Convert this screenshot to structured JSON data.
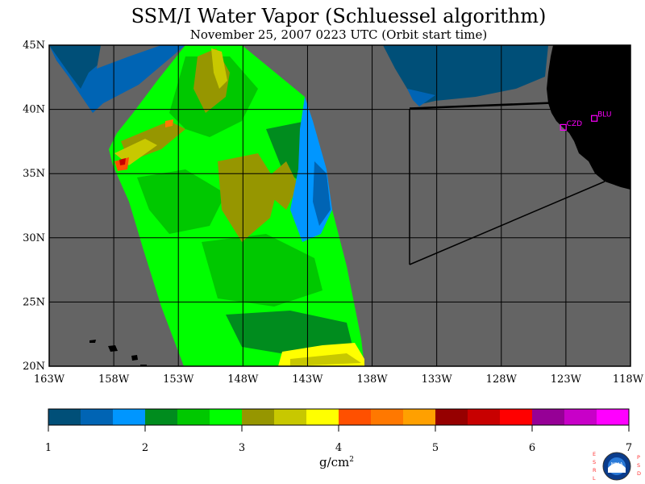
{
  "title": "SSM/I Water Vapor (Schluessel algorithm)",
  "subtitle": "November 25, 2007  0223 UTC  (Orbit start time)",
  "map": {
    "lat_labels": [
      "45N",
      "40N",
      "35N",
      "30N",
      "25N",
      "20N"
    ],
    "lon_labels": [
      "163W",
      "158W",
      "153W",
      "148W",
      "143W",
      "138W",
      "133W",
      "128W",
      "123W",
      "118W"
    ],
    "stations": [
      {
        "code": "CZD",
        "lat": 38.6,
        "lon": -123.2
      },
      {
        "code": "BLU",
        "lat": 39.3,
        "lon": -120.8
      }
    ],
    "colors": {
      "ocean_no_data": "#646464",
      "land": "#000000",
      "station": "#ff00ff"
    }
  },
  "colorbar": {
    "unit": "g/cm",
    "unit_power": "2",
    "tick_labels": [
      "1",
      "2",
      "3",
      "4",
      "5",
      "6",
      "7"
    ],
    "range": [
      1,
      7
    ],
    "step": 0.333,
    "colors": [
      "#004f78",
      "#0064b4",
      "#0096ff",
      "#008c1e",
      "#00c800",
      "#00ff00",
      "#969600",
      "#c8c800",
      "#ffff00",
      "#ff5000",
      "#ff7800",
      "#ffa000",
      "#960000",
      "#c80000",
      "#ff0000",
      "#960096",
      "#c800c8",
      "#ff00ff"
    ]
  },
  "logo": {
    "left_text": "ESRL",
    "right_text": "PSD",
    "center_text": "NOAA"
  }
}
